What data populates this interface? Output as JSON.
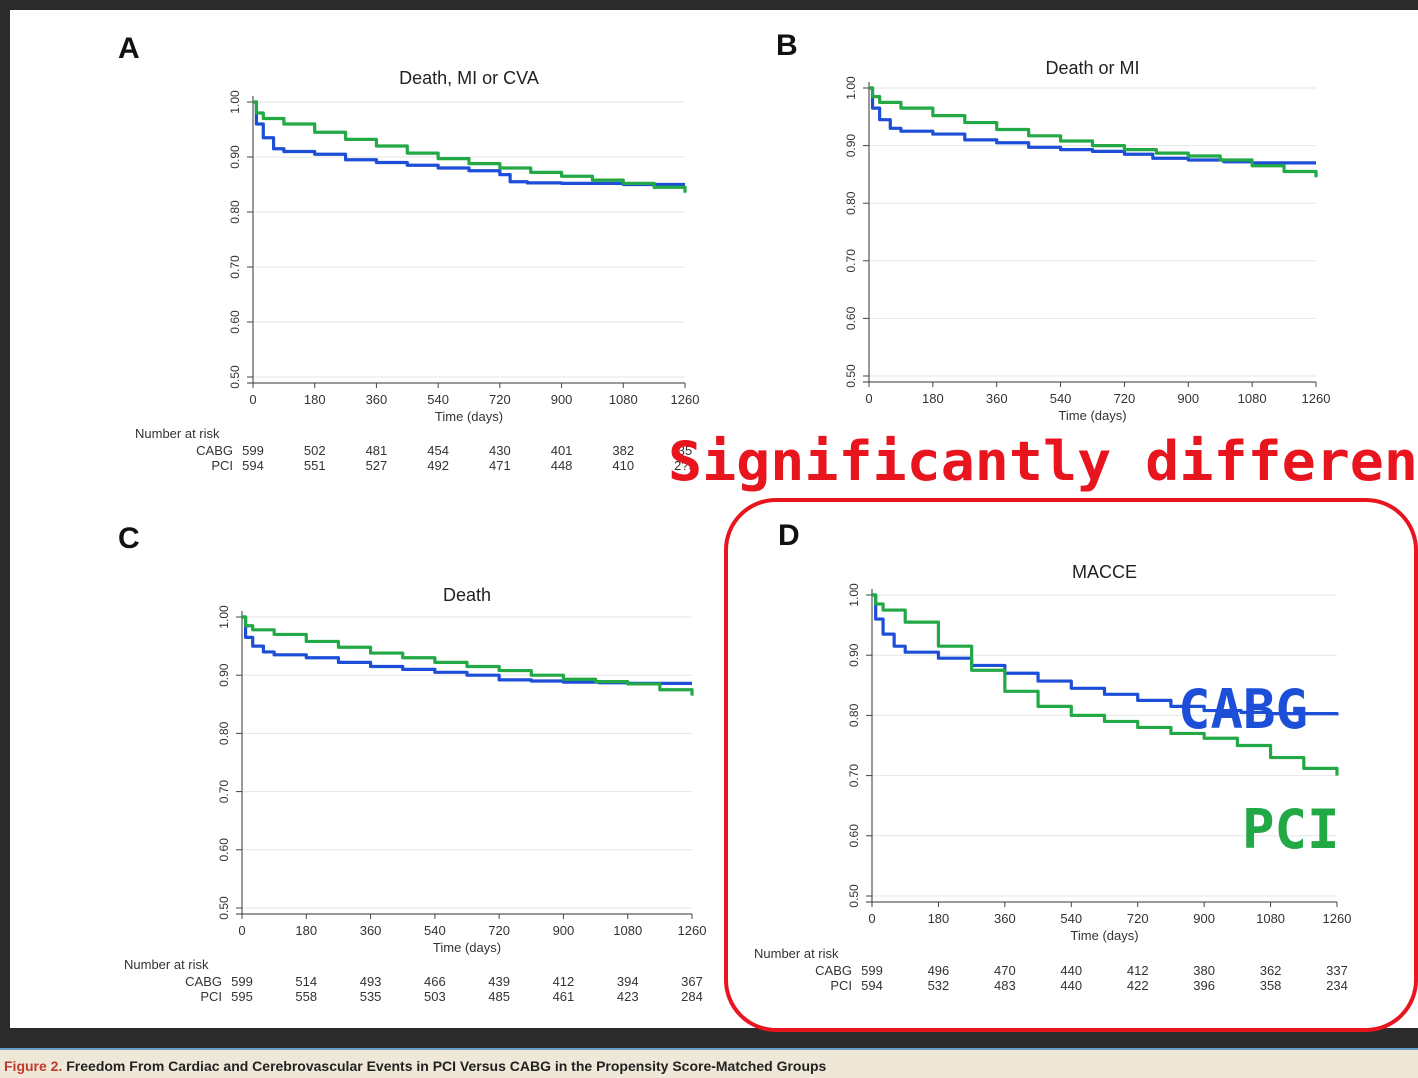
{
  "figure": {
    "caption_prefix": "Figure 2.",
    "caption_text": "Freedom From Cardiac and Cerebrovascular Events in PCI Versus CABG in the Propensity Score-Matched Groups"
  },
  "annotations": {
    "significance": "Significantly differen",
    "cabg_label": "CABG",
    "pci_label": "PCI",
    "highlight_color": "#e8141e",
    "cabg_color": "#1d4ed8",
    "pci_color": "#22a845"
  },
  "chart_data": [
    {
      "panel": "A",
      "type": "line",
      "title": "Death, MI or CVA",
      "xlabel": "Time (days)",
      "ylabel": "",
      "xlim": [
        0,
        1260
      ],
      "ylim": [
        0.5,
        1.0
      ],
      "x_ticks": [
        0,
        180,
        360,
        540,
        720,
        900,
        1080,
        1260
      ],
      "y_ticks": [
        "0.50",
        "0.60",
        "0.70",
        "0.80",
        "0.90",
        "1.00"
      ],
      "grid": "horizontal",
      "series": [
        {
          "name": "CABG",
          "color": "#1d4ed8",
          "x": [
            0,
            10,
            30,
            60,
            90,
            180,
            270,
            360,
            450,
            540,
            630,
            720,
            750,
            800,
            900,
            1000,
            1080,
            1260
          ],
          "y": [
            1.0,
            0.96,
            0.935,
            0.915,
            0.91,
            0.905,
            0.895,
            0.89,
            0.885,
            0.88,
            0.875,
            0.868,
            0.855,
            0.853,
            0.852,
            0.852,
            0.85,
            0.85
          ]
        },
        {
          "name": "PCI",
          "color": "#22a845",
          "x": [
            0,
            10,
            30,
            90,
            180,
            270,
            360,
            450,
            540,
            630,
            720,
            810,
            900,
            990,
            1080,
            1170,
            1260
          ],
          "y": [
            1.0,
            0.98,
            0.97,
            0.96,
            0.945,
            0.932,
            0.92,
            0.907,
            0.897,
            0.888,
            0.88,
            0.872,
            0.865,
            0.858,
            0.852,
            0.845,
            0.835
          ]
        }
      ],
      "risk_table": {
        "header": "Number at risk",
        "rows": [
          {
            "label": "CABG",
            "values": [
              "599",
              "502",
              "481",
              "454",
              "430",
              "401",
              "382",
              "35"
            ]
          },
          {
            "label": "PCI",
            "values": [
              "594",
              "551",
              "527",
              "492",
              "471",
              "448",
              "410",
              "2?5"
            ]
          }
        ]
      }
    },
    {
      "panel": "B",
      "type": "line",
      "title": "Death or MI",
      "xlabel": "Time (days)",
      "ylabel": "",
      "xlim": [
        0,
        1260
      ],
      "ylim": [
        0.5,
        1.0
      ],
      "x_ticks": [
        0,
        180,
        360,
        540,
        720,
        900,
        1080,
        1260
      ],
      "y_ticks": [
        "0.50",
        "0.60",
        "0.70",
        "0.80",
        "0.90",
        "1.00"
      ],
      "grid": "horizontal",
      "series": [
        {
          "name": "CABG",
          "color": "#1d4ed8",
          "x": [
            0,
            10,
            30,
            60,
            90,
            180,
            270,
            360,
            450,
            540,
            630,
            720,
            800,
            900,
            1000,
            1080,
            1260
          ],
          "y": [
            1.0,
            0.965,
            0.945,
            0.93,
            0.925,
            0.92,
            0.91,
            0.905,
            0.897,
            0.893,
            0.89,
            0.885,
            0.878,
            0.875,
            0.872,
            0.87,
            0.87
          ]
        },
        {
          "name": "PCI",
          "color": "#22a845",
          "x": [
            0,
            10,
            30,
            90,
            180,
            270,
            360,
            450,
            540,
            630,
            720,
            810,
            900,
            990,
            1080,
            1170,
            1260
          ],
          "y": [
            1.0,
            0.985,
            0.975,
            0.965,
            0.952,
            0.94,
            0.928,
            0.917,
            0.908,
            0.9,
            0.893,
            0.887,
            0.882,
            0.875,
            0.865,
            0.855,
            0.845
          ]
        }
      ]
    },
    {
      "panel": "C",
      "type": "line",
      "title": "Death",
      "xlabel": "Time (days)",
      "ylabel": "",
      "xlim": [
        0,
        1260
      ],
      "ylim": [
        0.5,
        1.0
      ],
      "x_ticks": [
        0,
        180,
        360,
        540,
        720,
        900,
        1080,
        1260
      ],
      "y_ticks": [
        "0.50",
        "0.60",
        "0.70",
        "0.80",
        "0.90",
        "1.00"
      ],
      "grid": "horizontal",
      "series": [
        {
          "name": "CABG",
          "color": "#1d4ed8",
          "x": [
            0,
            10,
            30,
            60,
            90,
            180,
            270,
            360,
            450,
            540,
            630,
            720,
            810,
            900,
            1000,
            1080,
            1260
          ],
          "y": [
            1.0,
            0.965,
            0.95,
            0.94,
            0.935,
            0.93,
            0.922,
            0.915,
            0.91,
            0.905,
            0.9,
            0.892,
            0.89,
            0.888,
            0.887,
            0.886,
            0.886
          ]
        },
        {
          "name": "PCI",
          "color": "#22a845",
          "x": [
            0,
            10,
            30,
            90,
            180,
            270,
            360,
            450,
            540,
            630,
            720,
            810,
            900,
            990,
            1080,
            1170,
            1260
          ],
          "y": [
            1.0,
            0.985,
            0.978,
            0.97,
            0.958,
            0.948,
            0.938,
            0.93,
            0.922,
            0.915,
            0.908,
            0.9,
            0.893,
            0.889,
            0.885,
            0.875,
            0.865
          ]
        }
      ],
      "risk_table": {
        "header": "Number at risk",
        "rows": [
          {
            "label": "CABG",
            "values": [
              "599",
              "514",
              "493",
              "466",
              "439",
              "412",
              "394",
              "367"
            ]
          },
          {
            "label": "PCI",
            "values": [
              "595",
              "558",
              "535",
              "503",
              "485",
              "461",
              "423",
              "284"
            ]
          }
        ]
      }
    },
    {
      "panel": "D",
      "type": "line",
      "title": "MACCE",
      "xlabel": "Time (days)",
      "ylabel": "",
      "xlim": [
        0,
        1260
      ],
      "ylim": [
        0.5,
        1.0
      ],
      "x_ticks": [
        0,
        180,
        360,
        540,
        720,
        900,
        1080,
        1260
      ],
      "y_ticks": [
        "0.50",
        "0.60",
        "0.70",
        "0.80",
        "0.90",
        "1.00"
      ],
      "grid": "horizontal",
      "series": [
        {
          "name": "CABG",
          "color": "#1d4ed8",
          "x": [
            0,
            10,
            30,
            60,
            90,
            180,
            270,
            360,
            450,
            540,
            630,
            720,
            810,
            900,
            1000,
            1080,
            1260
          ],
          "y": [
            1.0,
            0.96,
            0.935,
            0.915,
            0.905,
            0.895,
            0.883,
            0.87,
            0.857,
            0.845,
            0.835,
            0.825,
            0.815,
            0.808,
            0.805,
            0.803,
            0.8
          ]
        },
        {
          "name": "PCI",
          "color": "#22a845",
          "x": [
            0,
            10,
            30,
            90,
            180,
            270,
            360,
            450,
            540,
            630,
            720,
            810,
            900,
            990,
            1080,
            1170,
            1260
          ],
          "y": [
            1.0,
            0.985,
            0.975,
            0.955,
            0.915,
            0.875,
            0.84,
            0.815,
            0.8,
            0.79,
            0.78,
            0.77,
            0.762,
            0.75,
            0.73,
            0.712,
            0.7
          ]
        }
      ],
      "risk_table": {
        "header": "Number at risk",
        "rows": [
          {
            "label": "CABG",
            "values": [
              "599",
              "496",
              "470",
              "440",
              "412",
              "380",
              "362",
              "337"
            ]
          },
          {
            "label": "PCI",
            "values": [
              "594",
              "532",
              "483",
              "440",
              "422",
              "396",
              "358",
              "234"
            ]
          }
        ]
      }
    }
  ]
}
